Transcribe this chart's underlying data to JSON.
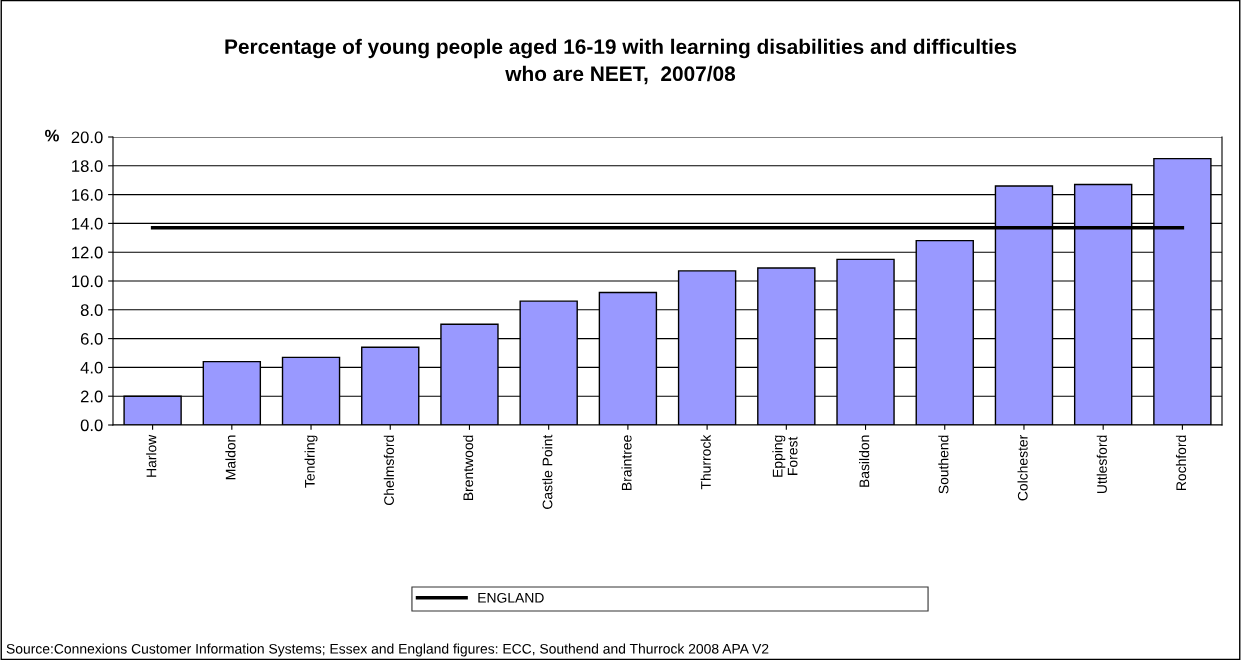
{
  "chart_data": {
    "type": "bar",
    "title": "Percentage of young people aged 16-19 with learning disabilities and difficulties\nwho are NEET,  2007/08",
    "ylabel": "%",
    "categories": [
      "Harlow",
      "Maldon",
      "Tendring",
      "Chelmsford",
      "Brentwood",
      "Castle Point",
      "Braintree",
      "Thurrock",
      "Epping\nForest",
      "Basildon",
      "Southend",
      "Colchester",
      "Uttlesford",
      "Rochford"
    ],
    "series": [
      {
        "color": "#9999ff",
        "values": [
          2.0,
          4.4,
          4.7,
          5.4,
          7.0,
          8.6,
          9.2,
          10.7,
          10.9,
          11.5,
          12.8,
          16.6,
          16.7,
          18.5
        ]
      },
      {
        "type": "line",
        "name": "ENGLAND",
        "color": "#000000",
        "values": [
          13.7,
          13.7,
          13.7,
          13.7,
          13.7,
          13.7,
          13.7,
          13.7,
          13.7,
          13.7,
          13.7,
          13.7,
          13.7,
          13.7
        ]
      }
    ],
    "ylim": [
      0,
      20
    ],
    "yticks": [
      {
        "value": 0,
        "label": "0.0"
      },
      {
        "value": 2,
        "label": "2.0"
      },
      {
        "value": 4,
        "label": "4.0"
      },
      {
        "value": 6,
        "label": "6.0"
      },
      {
        "value": 8,
        "label": "8.0"
      },
      {
        "value": 10,
        "label": "10.0"
      },
      {
        "value": 12,
        "label": "12.0"
      },
      {
        "value": 14,
        "label": "14.0"
      },
      {
        "value": 16,
        "label": "16.0"
      },
      {
        "value": 18,
        "label": "18.0"
      },
      {
        "value": 20,
        "label": "20.0"
      }
    ],
    "grid": "y",
    "legend": "bottom",
    "marker": "none",
    "line_style": "solid",
    "annotations": [
      "Source:Connexions Customer Information Systems; Essex and England figures: ECC, Southend and Thurrock 2008 APA V2"
    ]
  }
}
